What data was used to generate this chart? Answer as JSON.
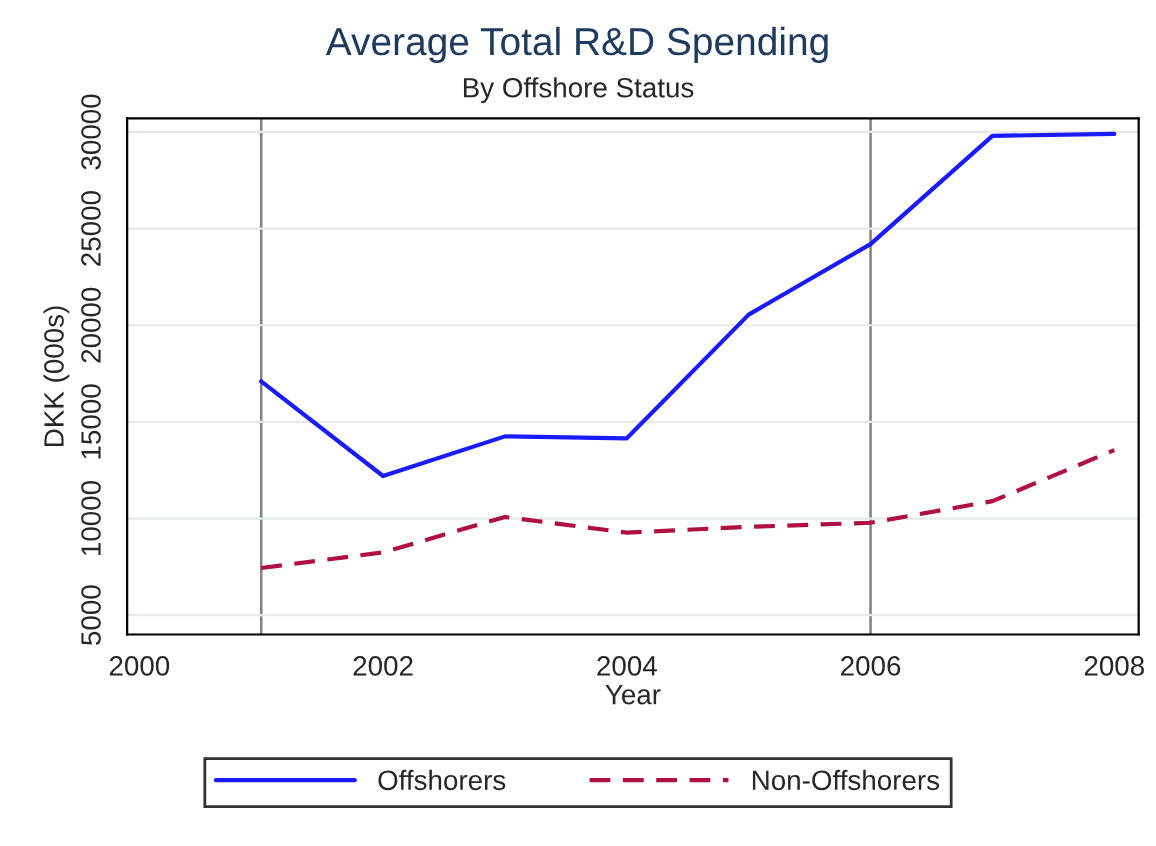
{
  "chart_data": {
    "type": "line",
    "title": "Average Total R&D Spending",
    "subtitle": "By Offshore Status",
    "xlabel": "Year",
    "ylabel": "DKK (000s)",
    "x": [
      2001,
      2002,
      2003,
      2004,
      2005,
      2006,
      2007,
      2008
    ],
    "series": [
      {
        "name": "Offshorers",
        "color": "#1a1aff",
        "line_style": "solid",
        "values": [
          17100,
          12200,
          14250,
          14150,
          20550,
          24200,
          29800,
          29900
        ]
      },
      {
        "name": "Non-Offshorers",
        "color": "#b01040",
        "line_style": "dashed",
        "values": [
          7440,
          8250,
          10080,
          9270,
          9570,
          9780,
          10900,
          13540
        ]
      }
    ],
    "xlim": [
      1999.9,
      2008.2
    ],
    "xticks": [
      2000,
      2002,
      2004,
      2006,
      2008
    ],
    "ylim": [
      4000,
      30700
    ],
    "yticks": [
      5000,
      10000,
      15000,
      20000,
      25000,
      30000
    ],
    "ref_lines": [
      {
        "axis": "x",
        "value": 2001,
        "color": "#808080"
      },
      {
        "axis": "x",
        "value": 2006,
        "color": "#808080"
      }
    ],
    "grid": "y",
    "legend": "bottom"
  }
}
